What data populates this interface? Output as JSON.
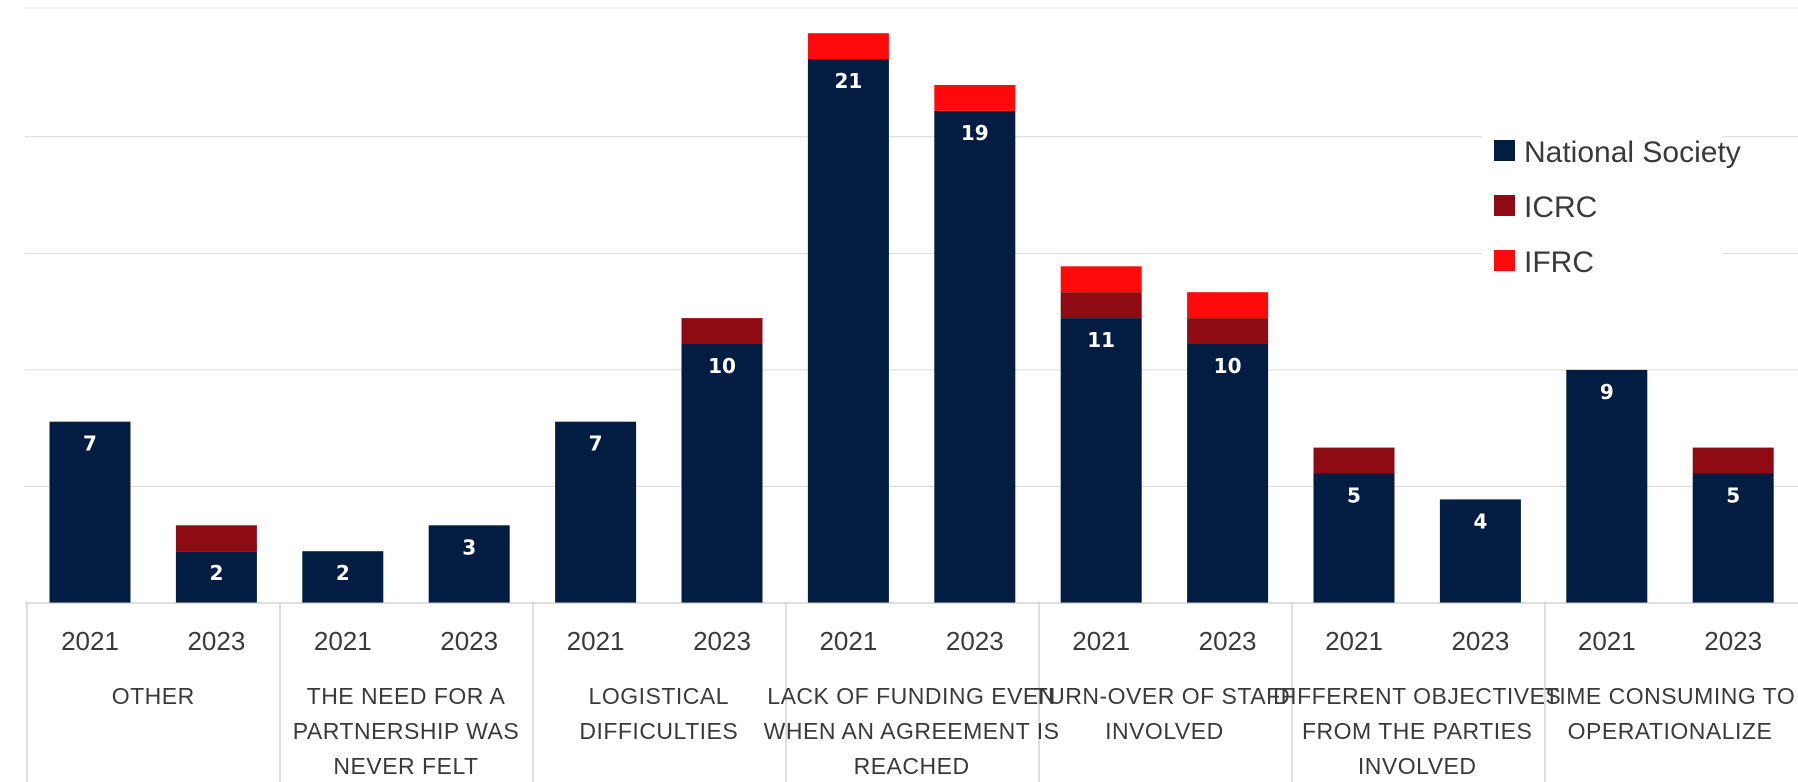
{
  "chart_data": {
    "type": "bar",
    "stacked": true,
    "grid": true,
    "legend_position": "top-right",
    "ylim": [
      0,
      22
    ],
    "colors": {
      "National Society": "#021c42",
      "ICRC": "#8e0b13",
      "IFRC": "#ff0a0a"
    },
    "groups": [
      {
        "label": "OTHER",
        "years": [
          "2021",
          "2023"
        ]
      },
      {
        "label": "THE NEED FOR A PARTNERSHIP WAS NEVER FELT",
        "years": [
          "2021",
          "2023"
        ]
      },
      {
        "label": "LOGISTICAL DIFFICULTIES",
        "years": [
          "2021",
          "2023"
        ]
      },
      {
        "label": "LACK OF FUNDING EVEN WHEN AN AGREEMENT IS REACHED",
        "years": [
          "2021",
          "2023"
        ]
      },
      {
        "label": "TURN-OVER OF STAFF INVOLVED",
        "years": [
          "2021",
          "2023"
        ]
      },
      {
        "label": "DIFFERENT OBJECTIVES FROM THE PARTIES INVOLVED",
        "years": [
          "2021",
          "2023"
        ]
      },
      {
        "label": "TIME CONSUMING TO OPERATIONALIZE",
        "years": [
          "2021",
          "2023"
        ]
      }
    ],
    "series": [
      {
        "name": "National Society",
        "values": [
          7,
          2,
          2,
          3,
          7,
          10,
          21,
          19,
          11,
          10,
          5,
          4,
          9,
          5
        ],
        "labels": [
          "7",
          "2",
          "2",
          "3",
          "7",
          "10",
          "21",
          "19",
          "11",
          "10",
          "5",
          "4",
          "9",
          "5"
        ]
      },
      {
        "name": "ICRC",
        "values": [
          0,
          1,
          0,
          0,
          0,
          1,
          0,
          0,
          1,
          1,
          1,
          0,
          0,
          1
        ]
      },
      {
        "name": "IFRC",
        "values": [
          0,
          0,
          0,
          0,
          0,
          0,
          1,
          1,
          1,
          1,
          0,
          0,
          0,
          0
        ]
      }
    ]
  }
}
